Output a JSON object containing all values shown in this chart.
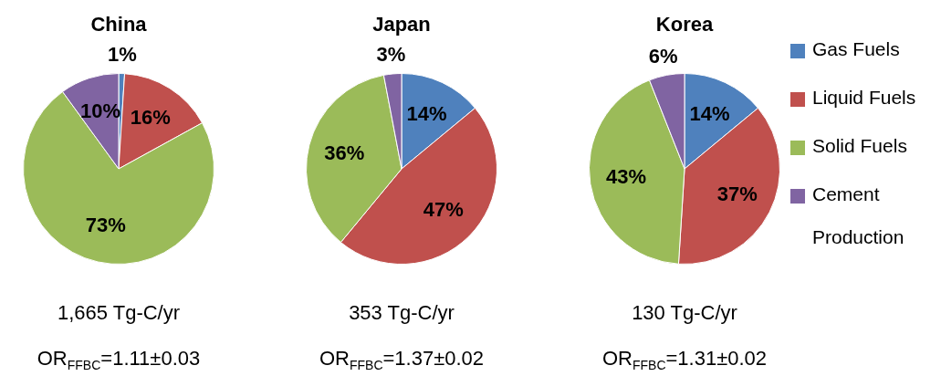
{
  "chart_data": [
    {
      "type": "pie",
      "title": "China",
      "categories": [
        null,
        null,
        null,
        null
      ],
      "values": [
        1,
        16,
        73,
        10
      ],
      "colors": [
        "#4f81bd",
        "#c0504d",
        "#9bbb59",
        "#8064a2"
      ],
      "value_labels": [
        "1%",
        "16%",
        "73%",
        "10%"
      ],
      "legend": false,
      "annotations": [
        "1,665 Tg-C/yr",
        "OR$_{FFBC}$=1.11±0.03"
      ]
    },
    {
      "type": "pie",
      "title": "Japan",
      "categories": [
        null,
        null,
        null,
        null
      ],
      "values": [
        14,
        47,
        36,
        3
      ],
      "colors": [
        "#4f81bd",
        "#c0504d",
        "#9bbb59",
        "#8064a2"
      ],
      "value_labels": [
        "14%",
        "47%",
        "36%",
        "3%"
      ],
      "legend": false,
      "annotations": [
        "353 Tg-C/yr",
        "OR$_{FFBC}$=1.37±0.02"
      ]
    },
    {
      "type": "pie",
      "title": "Korea",
      "categories": [
        "Gas Fuels",
        "Liquid Fuels",
        "Solid Fuels",
        "Cement Production"
      ],
      "values": [
        14,
        37,
        43,
        6
      ],
      "colors": [
        "#4f81bd",
        "#c0504d",
        "#9bbb59",
        "#8064a2"
      ],
      "value_labels": [
        "14%",
        "37%",
        "43%",
        "6%"
      ],
      "legend": "right",
      "annotations": [
        "130 Tg-C/yr",
        "OR$_{FFBC}$=1.31±0.02"
      ]
    }
  ]
}
